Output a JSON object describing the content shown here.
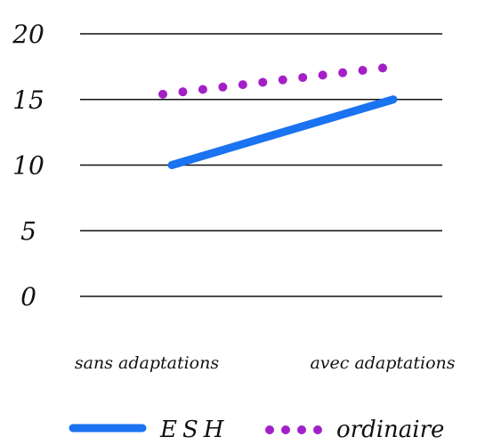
{
  "chart_data": {
    "type": "line",
    "categories": [
      "sans adaptations",
      "avec adaptations"
    ],
    "series": [
      {
        "name": "ESH",
        "values": [
          10,
          15
        ],
        "color": "#1a73f0",
        "style": "solid"
      },
      {
        "name": "ordinaire",
        "values": [
          15.4,
          17.4
        ],
        "color": "#a41fc8",
        "style": "dotted"
      }
    ],
    "yticks": [
      {
        "value": 0,
        "label": "0"
      },
      {
        "value": 5,
        "label": "5"
      },
      {
        "value": 10,
        "label": "10"
      },
      {
        "value": 15,
        "label": "15"
      },
      {
        "value": 20,
        "label": "20"
      }
    ],
    "ylim": [
      0,
      20
    ],
    "grid": true,
    "legend_position": "bottom"
  }
}
